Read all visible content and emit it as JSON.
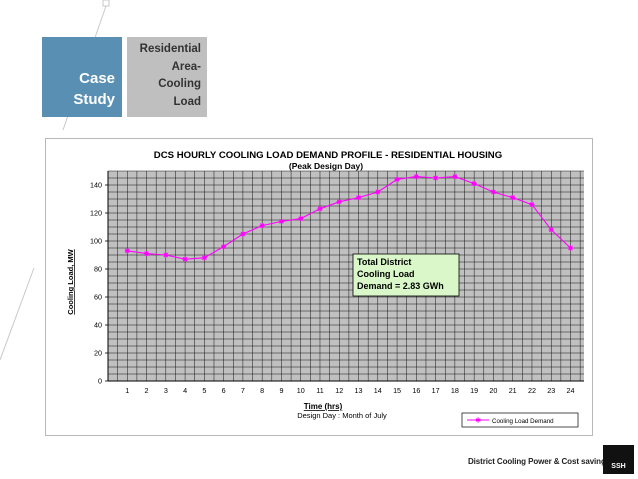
{
  "slide": {
    "case_label_line1": "Case",
    "case_label_line2": "Study",
    "topic_line1": "Residential",
    "topic_line2": "Area-",
    "topic_line3": "Cooling",
    "topic_line4": "Load",
    "footer": "District Cooling Power & Cost savings",
    "logo": "SSH",
    "accent_color": "#5a8fb4",
    "topic_box_color": "#bfbfbf"
  },
  "chart_data": {
    "type": "line",
    "title": "DCS HOURLY COOLING  LOAD DEMAND PROFILE - RESIDENTIAL HOUSING",
    "subtitle": "(Peak Design Day)",
    "xlabel": "Time (hrs)",
    "xlabel_note": "Design Day : Month of July",
    "ylabel": "Cooling Load, MW",
    "x": [
      1,
      2,
      3,
      4,
      5,
      6,
      7,
      8,
      9,
      10,
      11,
      12,
      13,
      14,
      15,
      16,
      17,
      18,
      19,
      20,
      21,
      22,
      23,
      24
    ],
    "xticks": [
      "1",
      "2",
      "3",
      "4",
      "5",
      "6",
      "7",
      "8",
      "9",
      "10",
      "11",
      "12",
      "13",
      "14",
      "15",
      "16",
      "17",
      "18",
      "19",
      "20",
      "21",
      "22",
      "23",
      "24"
    ],
    "yticks": [
      "0",
      "20",
      "40",
      "60",
      "80",
      "100",
      "120",
      "140"
    ],
    "ylim": [
      0,
      150
    ],
    "xlim": [
      0,
      24.7
    ],
    "grid": true,
    "legend_position": "bottom-right",
    "series": [
      {
        "name": "Cooling Load Demand",
        "color": "#ff00ff",
        "values": [
          93,
          91,
          90,
          87,
          88,
          96,
          105,
          111,
          114,
          116,
          123,
          128,
          131,
          135,
          144,
          146,
          145,
          146,
          141,
          135,
          131,
          126,
          108,
          95
        ]
      }
    ],
    "annotation": {
      "line1": "Total District",
      "line2": "Cooling Load",
      "line3": "Demand = 2.83 GWh",
      "background": "#d9f7c9"
    }
  }
}
